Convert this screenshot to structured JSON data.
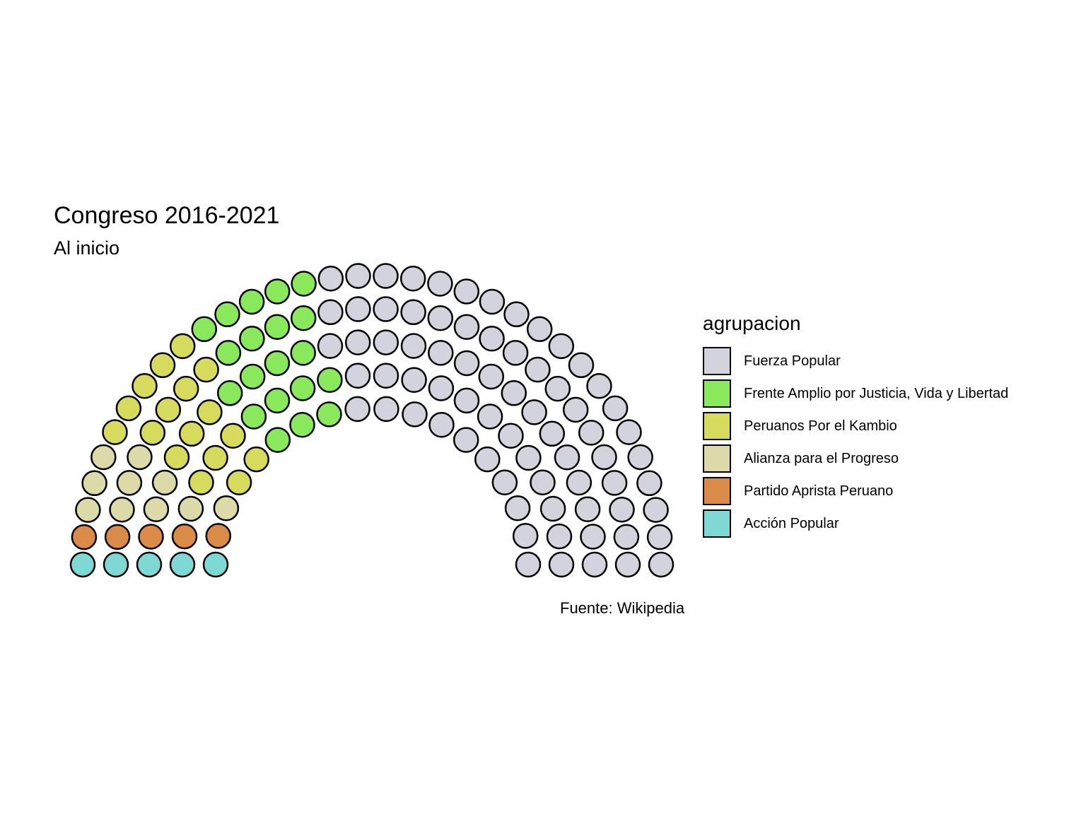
{
  "chart_data": {
    "type": "parliament",
    "title": "Congreso 2016-2021",
    "subtitle": "Al inicio",
    "caption": "Fuente: Wikipedia",
    "legend_title": "agrupacion",
    "legend_position": "right",
    "total_seats": 130,
    "series": [
      {
        "name": "Fuerza Popular",
        "seats": 73,
        "color": "#D3D3DE"
      },
      {
        "name": "Frente Amplio por Justicia, Vida y Libertad",
        "seats": 20,
        "color": "#89E85B"
      },
      {
        "name": "Peruanos Por el Kambio",
        "seats": 17,
        "color": "#D6DB5E"
      },
      {
        "name": "Alianza para el Progreso",
        "seats": 10,
        "color": "#DCDAA8"
      },
      {
        "name": "Partido Aprista Peruano",
        "seats": 5,
        "color": "#DA8B48"
      },
      {
        "name": "Acción Popular",
        "seats": 5,
        "color": "#7ED9D4"
      }
    ]
  }
}
